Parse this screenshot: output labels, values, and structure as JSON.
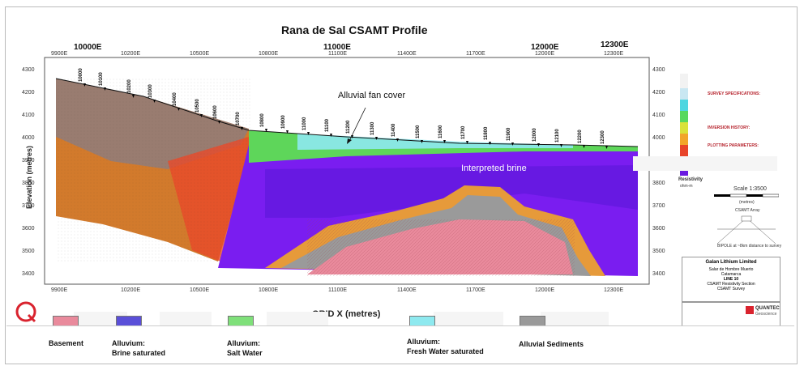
{
  "title": "Rana de Sal CSAMT Profile",
  "major_stations": [
    "10000E",
    "11000E",
    "12000E",
    "12300E"
  ],
  "x_ticks": [
    "9900E",
    "10200E",
    "10500E",
    "10800E",
    "11100E",
    "11400E",
    "11700E",
    "12000E",
    "12300E"
  ],
  "top_ticks": [
    "9900E",
    "10200E",
    "10500E",
    "10800E",
    "11100E",
    "11400E",
    "11700E",
    "12000E",
    "12300E"
  ],
  "y_ticks": [
    "4300",
    "4200",
    "4100",
    "4000",
    "3900",
    "3800",
    "3700",
    "3600",
    "3500",
    "3400"
  ],
  "y_axis_label": "Elevation (metres)",
  "x_axis_label": "GRID X (metres)",
  "station_labels": [
    "10000",
    "10100",
    "10200",
    "10300",
    "10400",
    "10500",
    "10600",
    "10700",
    "10800",
    "10900",
    "11000",
    "11100",
    "11200",
    "11300",
    "11400",
    "11500",
    "11600",
    "11700",
    "11800",
    "11900",
    "12000",
    "12100",
    "12200",
    "12300"
  ],
  "annotations": {
    "alluvial_fan": "Alluvial fan cover",
    "brine": "Interpreted brine"
  },
  "legend": [
    {
      "label_lines": [
        "Basement"
      ],
      "color": "#e98a9c"
    },
    {
      "label_lines": [
        "Alluvium:",
        "Brine saturated"
      ],
      "color": "#5a4fd8"
    },
    {
      "label_lines": [
        "Alluvium:",
        "Salt Water"
      ],
      "color": "#7fe07a"
    },
    {
      "label_lines": [
        "Alluvium:",
        "Fresh Water saturated"
      ],
      "color": "#8ee9ef"
    },
    {
      "label_lines": [
        "Alluvial Sediments"
      ],
      "color": "#9a9a9a"
    }
  ],
  "side_panel": {
    "colorbar_label": "Resistivity",
    "colorbar_unit": "ohm-m",
    "survey_heading": "SURVEY SPECIFICATIONS:",
    "inversion_heading": "INVERSION HISTORY:",
    "plotting_heading": "PLOTTING PARAMETERS:",
    "scale": "Scale 1:3500",
    "scale_unit": "(metres)",
    "array_label": "CSAMT Array",
    "bipole_note": "BIPOLE at ~8km distance to survey",
    "company": "Galan Lithium Limited",
    "project_lines": [
      "Salar de Hombre Muerto",
      "Catamarca",
      "LINE 10",
      "CSAMT Resistivity Section",
      "CSAMT Survey"
    ],
    "contractor": "QUANTEC",
    "contractor_sub": "Geoscience"
  }
}
